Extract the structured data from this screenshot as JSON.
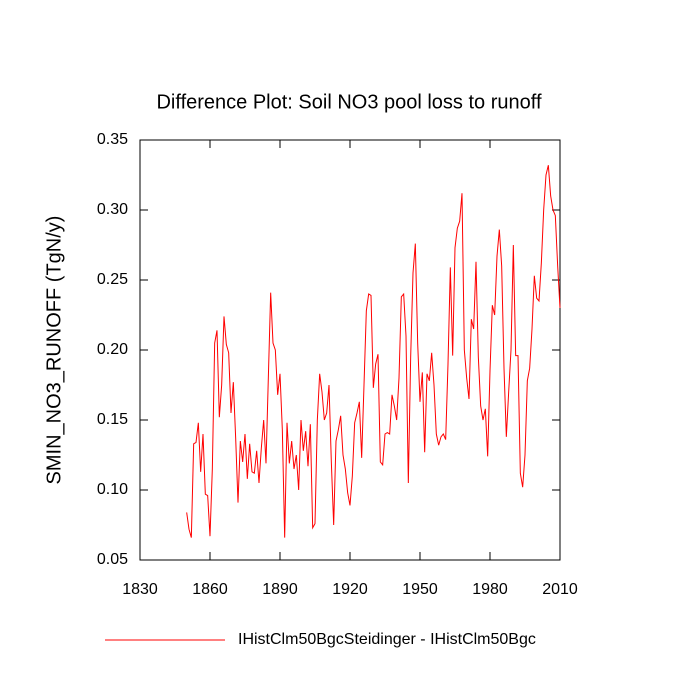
{
  "chart_data": {
    "type": "line",
    "title": "Difference Plot: Soil NO3 pool loss to runoff",
    "y_label": "SMIN_NO3_RUNOFF  (TgN/y)",
    "x": [
      1850,
      1851,
      1852,
      1853,
      1854,
      1855,
      1856,
      1857,
      1858,
      1859,
      1860,
      1861,
      1862,
      1863,
      1864,
      1865,
      1866,
      1867,
      1868,
      1869,
      1870,
      1871,
      1872,
      1873,
      1874,
      1875,
      1876,
      1877,
      1878,
      1879,
      1880,
      1881,
      1882,
      1883,
      1884,
      1885,
      1886,
      1887,
      1888,
      1889,
      1890,
      1891,
      1892,
      1893,
      1894,
      1895,
      1896,
      1897,
      1898,
      1899,
      1900,
      1901,
      1902,
      1903,
      1904,
      1905,
      1906,
      1907,
      1908,
      1909,
      1910,
      1911,
      1912,
      1913,
      1914,
      1915,
      1916,
      1917,
      1918,
      1919,
      1920,
      1921,
      1922,
      1923,
      1924,
      1925,
      1926,
      1927,
      1928,
      1929,
      1930,
      1931,
      1932,
      1933,
      1934,
      1935,
      1936,
      1937,
      1938,
      1939,
      1940,
      1941,
      1942,
      1943,
      1944,
      1945,
      1946,
      1947,
      1948,
      1949,
      1950,
      1951,
      1952,
      1953,
      1954,
      1955,
      1956,
      1957,
      1958,
      1959,
      1960,
      1961,
      1962,
      1963,
      1964,
      1965,
      1966,
      1967,
      1968,
      1969,
      1970,
      1971,
      1972,
      1973,
      1974,
      1975,
      1976,
      1977,
      1978,
      1979,
      1980,
      1981,
      1982,
      1983,
      1984,
      1985,
      1986,
      1987,
      1988,
      1989,
      1990,
      1991,
      1992,
      1993,
      1994,
      1995,
      1996,
      1997,
      1998,
      1999,
      2000,
      2001,
      2002,
      2003,
      2004,
      2005,
      2006,
      2007,
      2008,
      2009,
      2010
    ],
    "series": [
      {
        "name": "IHistClm50BgcSteidinger - IHistClm50Bgc",
        "color": "#ff0000",
        "values": [
          0.084,
          0.072,
          0.066,
          0.133,
          0.134,
          0.148,
          0.113,
          0.14,
          0.097,
          0.096,
          0.067,
          0.115,
          0.205,
          0.214,
          0.152,
          0.175,
          0.224,
          0.204,
          0.198,
          0.155,
          0.177,
          0.137,
          0.091,
          0.135,
          0.12,
          0.14,
          0.108,
          0.133,
          0.113,
          0.112,
          0.128,
          0.105,
          0.13,
          0.15,
          0.119,
          0.18,
          0.241,
          0.205,
          0.2,
          0.168,
          0.183,
          0.143,
          0.066,
          0.148,
          0.119,
          0.135,
          0.115,
          0.125,
          0.1,
          0.15,
          0.128,
          0.142,
          0.117,
          0.147,
          0.073,
          0.076,
          0.15,
          0.183,
          0.17,
          0.15,
          0.155,
          0.175,
          0.12,
          0.075,
          0.135,
          0.143,
          0.153,
          0.125,
          0.115,
          0.098,
          0.089,
          0.11,
          0.148,
          0.155,
          0.163,
          0.123,
          0.175,
          0.228,
          0.24,
          0.239,
          0.173,
          0.19,
          0.197,
          0.12,
          0.118,
          0.14,
          0.141,
          0.14,
          0.168,
          0.16,
          0.15,
          0.18,
          0.238,
          0.24,
          0.21,
          0.105,
          0.195,
          0.255,
          0.276,
          0.205,
          0.163,
          0.184,
          0.127,
          0.183,
          0.178,
          0.198,
          0.175,
          0.14,
          0.132,
          0.138,
          0.14,
          0.136,
          0.19,
          0.259,
          0.196,
          0.273,
          0.287,
          0.292,
          0.312,
          0.2,
          0.18,
          0.165,
          0.222,
          0.215,
          0.263,
          0.195,
          0.16,
          0.15,
          0.158,
          0.124,
          0.185,
          0.232,
          0.225,
          0.267,
          0.286,
          0.26,
          0.187,
          0.138,
          0.17,
          0.2,
          0.275,
          0.196,
          0.196,
          0.112,
          0.102,
          0.125,
          0.178,
          0.187,
          0.215,
          0.253,
          0.237,
          0.235,
          0.262,
          0.3,
          0.325,
          0.332,
          0.31,
          0.3,
          0.296,
          0.26,
          0.23
        ]
      }
    ],
    "xlim": [
      1830,
      2010
    ],
    "xticks": [
      1830,
      1860,
      1890,
      1920,
      1950,
      1980,
      2010
    ],
    "ylim": [
      0.05,
      0.35
    ],
    "yticks": [
      {
        "value": 0.05,
        "label": "0.05"
      },
      {
        "value": 0.1,
        "label": "0.10"
      },
      {
        "value": 0.15,
        "label": "0.15"
      },
      {
        "value": 0.2,
        "label": "0.20"
      },
      {
        "value": 0.25,
        "label": "0.25"
      },
      {
        "value": 0.3,
        "label": "0.30"
      },
      {
        "value": 0.35,
        "label": "0.35"
      }
    ]
  }
}
